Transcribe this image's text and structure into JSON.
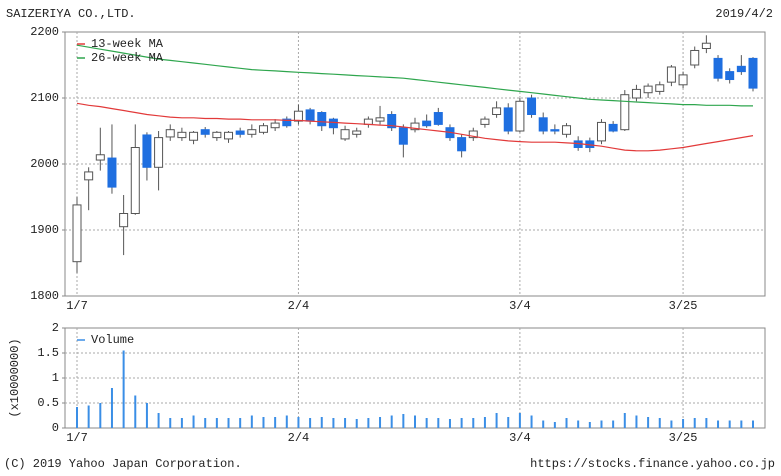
{
  "chart_data": [
    {
      "type": "candlestick",
      "title": "SAIZERIYA CO.,LTD.",
      "date": "2019/4/2",
      "categories": [
        "1/7",
        null,
        null,
        null,
        null,
        null,
        null,
        null,
        null,
        null,
        null,
        null,
        null,
        null,
        null,
        null,
        null,
        null,
        null,
        "2/4",
        null,
        null,
        null,
        null,
        null,
        null,
        null,
        null,
        null,
        null,
        null,
        null,
        null,
        null,
        null,
        null,
        null,
        null,
        "3/4",
        null,
        null,
        null,
        null,
        null,
        null,
        null,
        null,
        null,
        null,
        null,
        null,
        null,
        "3/25",
        null,
        null,
        null,
        null,
        null,
        null
      ],
      "open": [
        1852,
        1976,
        2006,
        2009,
        1905,
        1925,
        2044,
        1995,
        2041,
        2040,
        2036,
        2052,
        2040,
        2038,
        2050,
        2045,
        2048,
        2055,
        2068,
        2065,
        2082,
        2078,
        2068,
        2038,
        2045,
        2060,
        2065,
        2075,
        2055,
        2052,
        2065,
        2078,
        2055,
        2040,
        2040,
        2060,
        2075,
        2085,
        2050,
        2100,
        2070,
        2052,
        2045,
        2035,
        2035,
        2035,
        2060,
        2052,
        2100,
        2108,
        2110,
        2124,
        2120,
        2150,
        2175,
        2160,
        2140,
        2148,
        2160
      ],
      "high": [
        1950,
        1995,
        2055,
        2060,
        1953,
        2060,
        2048,
        2050,
        2060,
        2055,
        2050,
        2056,
        2050,
        2050,
        2055,
        2060,
        2062,
        2068,
        2072,
        2090,
        2085,
        2080,
        2070,
        2058,
        2055,
        2072,
        2088,
        2080,
        2060,
        2070,
        2075,
        2085,
        2060,
        2045,
        2055,
        2072,
        2095,
        2092,
        2100,
        2105,
        2078,
        2060,
        2062,
        2042,
        2040,
        2068,
        2065,
        2112,
        2120,
        2122,
        2125,
        2150,
        2140,
        2178,
        2195,
        2165,
        2145,
        2165,
        2162
      ],
      "low": [
        1835,
        1930,
        1990,
        1955,
        1862,
        1923,
        1975,
        1960,
        2035,
        2035,
        2030,
        2040,
        2035,
        2032,
        2040,
        2040,
        2045,
        2050,
        2055,
        2060,
        2060,
        2050,
        2045,
        2035,
        2040,
        2055,
        2060,
        2050,
        2010,
        2048,
        2055,
        2058,
        2035,
        2010,
        2035,
        2055,
        2070,
        2045,
        2048,
        2070,
        2045,
        2045,
        2040,
        2020,
        2018,
        2030,
        2048,
        2050,
        2095,
        2100,
        2105,
        2118,
        2115,
        2145,
        2168,
        2125,
        2122,
        2135,
        2110
      ],
      "close": [
        1938,
        1988,
        2014,
        1965,
        1925,
        2025,
        1995,
        2040,
        2052,
        2048,
        2048,
        2045,
        2048,
        2048,
        2045,
        2052,
        2058,
        2062,
        2058,
        2080,
        2065,
        2058,
        2055,
        2052,
        2050,
        2068,
        2070,
        2055,
        2030,
        2062,
        2058,
        2060,
        2040,
        2020,
        2050,
        2068,
        2085,
        2050,
        2095,
        2075,
        2050,
        2050,
        2058,
        2025,
        2025,
        2063,
        2050,
        2105,
        2113,
        2118,
        2120,
        2147,
        2135,
        2172,
        2183,
        2130,
        2128,
        2140,
        2115
      ],
      "up_color": "#ffffff",
      "down_color": "#1f6fe0",
      "edge_color": "#555555",
      "series": [
        {
          "name": "13-week MA",
          "color": "#e23a3a",
          "values": [
            2092,
            2089,
            2087,
            2084,
            2081,
            2078,
            2075,
            2073,
            2071,
            2070,
            2070,
            2069,
            2069,
            2068,
            2068,
            2067,
            2067,
            2067,
            2066,
            2066,
            2065,
            2064,
            2063,
            2062,
            2061,
            2060,
            2059,
            2058,
            2056,
            2054,
            2052,
            2050,
            2048,
            2045,
            2042,
            2039,
            2037,
            2035,
            2034,
            2033,
            2033,
            2033,
            2032,
            2031,
            2029,
            2027,
            2024,
            2021,
            2020,
            2020,
            2021,
            2023,
            2025,
            2028,
            2031,
            2034,
            2037,
            2040,
            2043
          ]
        },
        {
          "name": "26-week MA",
          "color": "#2fa64e",
          "values": [
            2180,
            2177,
            2174,
            2171,
            2168,
            2165,
            2162,
            2159,
            2157,
            2155,
            2153,
            2151,
            2149,
            2147,
            2145,
            2143,
            2142,
            2141,
            2140,
            2139,
            2138,
            2137,
            2136,
            2135,
            2134,
            2133,
            2132,
            2131,
            2130,
            2128,
            2126,
            2124,
            2122,
            2120,
            2118,
            2116,
            2114,
            2112,
            2110,
            2108,
            2106,
            2104,
            2102,
            2100,
            2098,
            2097,
            2096,
            2095,
            2094,
            2093,
            2092,
            2091,
            2090,
            2090,
            2089,
            2089,
            2089,
            2088,
            2088
          ]
        }
      ],
      "ylim": [
        1800,
        2200
      ],
      "yticks": [
        1800,
        1900,
        2000,
        2100,
        2200
      ],
      "grid": true,
      "legend": "upper left"
    },
    {
      "type": "bar",
      "ylabel": "(x10000000)",
      "categories": [
        "1/7",
        null,
        null,
        null,
        null,
        null,
        null,
        null,
        null,
        null,
        null,
        null,
        null,
        null,
        null,
        null,
        null,
        null,
        null,
        "2/4",
        null,
        null,
        null,
        null,
        null,
        null,
        null,
        null,
        null,
        null,
        null,
        null,
        null,
        null,
        null,
        null,
        null,
        null,
        "3/4",
        null,
        null,
        null,
        null,
        null,
        null,
        null,
        null,
        null,
        null,
        null,
        null,
        null,
        "3/25",
        null,
        null,
        null,
        null,
        null,
        null
      ],
      "series": [
        {
          "name": "Volume",
          "color": "#3a8ee6",
          "values": [
            0.42,
            0.45,
            0.5,
            0.8,
            1.55,
            0.65,
            0.5,
            0.3,
            0.2,
            0.2,
            0.25,
            0.2,
            0.2,
            0.2,
            0.2,
            0.25,
            0.22,
            0.22,
            0.25,
            0.22,
            0.2,
            0.22,
            0.2,
            0.2,
            0.18,
            0.2,
            0.22,
            0.25,
            0.28,
            0.25,
            0.2,
            0.2,
            0.18,
            0.2,
            0.2,
            0.22,
            0.3,
            0.22,
            0.3,
            0.25,
            0.15,
            0.12,
            0.2,
            0.15,
            0.12,
            0.15,
            0.15,
            0.3,
            0.25,
            0.22,
            0.2,
            0.15,
            0.18,
            0.2,
            0.2,
            0.15,
            0.15,
            0.15,
            0.15
          ]
        }
      ],
      "ylim": [
        0,
        2
      ],
      "yticks": [
        0,
        0.5,
        1,
        1.5,
        2
      ],
      "grid": true,
      "legend": "upper left"
    }
  ],
  "footer": {
    "copyright": "(C) 2019 Yahoo Japan Corporation.",
    "url": "https://stocks.finance.yahoo.co.jp"
  }
}
